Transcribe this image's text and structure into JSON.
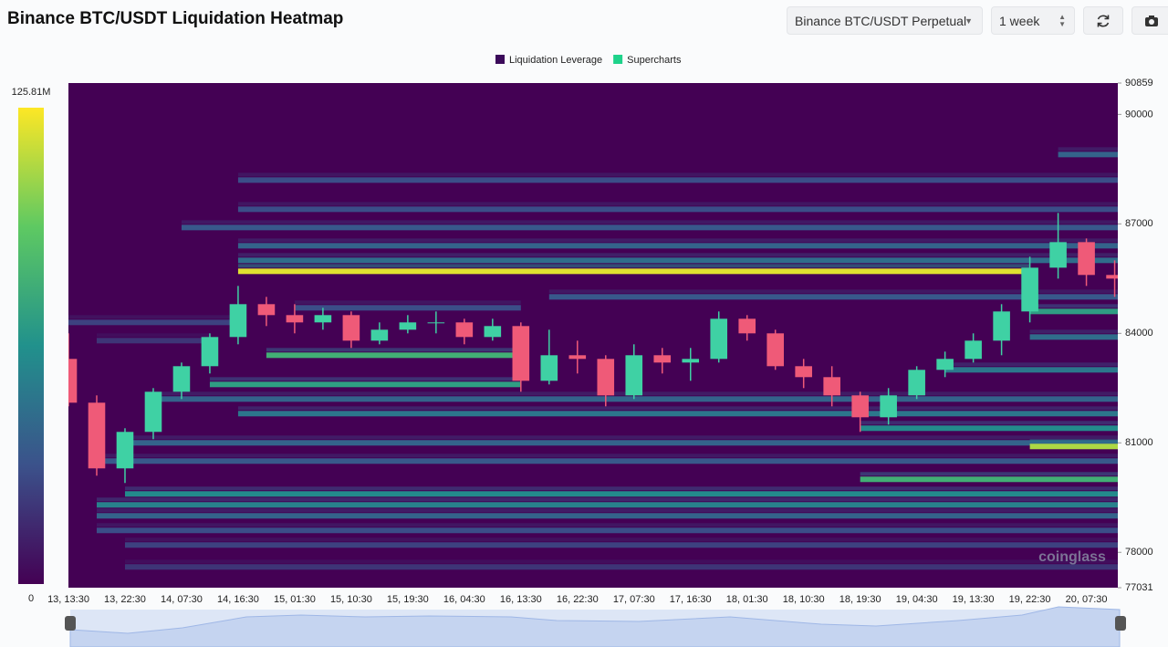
{
  "chart_data": {
    "type": "heatmap",
    "title": "Binance BTC/USDT Liquidation Heatmap",
    "controls": {
      "exchange": "Binance BTC/USDT Perpetual",
      "range": "1 week"
    },
    "legend": [
      {
        "name": "Liquidation Leverage",
        "color": "#3b0a5a"
      },
      {
        "name": "Supercharts",
        "color": "#1ed28a"
      }
    ],
    "watermark": "coinglass",
    "colorbar": {
      "lim": [
        0,
        125.81
      ],
      "ticks": [
        {
          "value": 125.81,
          "label": "125.81M"
        },
        0
      ],
      "colors": [
        "#440154",
        "#3b528b",
        "#21918c",
        "#5ec962",
        "#fde725"
      ]
    },
    "ylim": [
      77031,
      90859
    ],
    "yticks": [
      90859,
      90000,
      87000,
      84000,
      81000,
      78000,
      77031
    ],
    "xlim": [
      "13, 13:30",
      "20, 12:30"
    ],
    "xticks": [
      "13, 13:30",
      "13, 22:30",
      "14, 07:30",
      "14, 16:30",
      "15, 01:30",
      "15, 10:30",
      "15, 19:30",
      "16, 04:30",
      "16, 13:30",
      "16, 22:30",
      "17, 07:30",
      "17, 16:30",
      "18, 01:30",
      "18, 10:30",
      "18, 19:30",
      "19, 04:30",
      "19, 13:30",
      "19, 22:30",
      "20, 07:30"
    ],
    "bands": [
      {
        "price": 88900,
        "from": "20, 03:00",
        "value": 40
      },
      {
        "price": 88200,
        "from": "14, 16:30",
        "value": 30
      },
      {
        "price": 87400,
        "from": "14, 16:30",
        "value": 30
      },
      {
        "price": 86900,
        "from": "14, 07:30",
        "value": 35
      },
      {
        "price": 86400,
        "from": "14, 16:30",
        "value": 40
      },
      {
        "price": 86000,
        "from": "14, 16:30",
        "value": 45
      },
      {
        "price": 85700,
        "from": "14, 16:30",
        "to": "19, 22:30",
        "value": 120
      },
      {
        "price": 85000,
        "from": "16, 18:00",
        "value": 35
      },
      {
        "price": 84700,
        "from": "15, 01:30",
        "to": "16, 13:30",
        "value": 30
      },
      {
        "price": 84600,
        "from": "19, 22:30",
        "value": 70
      },
      {
        "price": 84300,
        "from": "13, 13:30",
        "to": "14, 16:30",
        "value": 25
      },
      {
        "price": 83900,
        "from": "19, 22:30",
        "value": 45
      },
      {
        "price": 83800,
        "from": "13, 18:00",
        "to": "14, 12:00",
        "value": 20
      },
      {
        "price": 83400,
        "from": "14, 21:00",
        "to": "16, 13:30",
        "value": 80
      },
      {
        "price": 83000,
        "from": "19, 09:00",
        "value": 50
      },
      {
        "price": 82600,
        "from": "14, 12:00",
        "to": "16, 13:30",
        "value": 70
      },
      {
        "price": 82200,
        "from": "14, 03:00",
        "value": 40
      },
      {
        "price": 81800,
        "from": "14, 16:30",
        "value": 50
      },
      {
        "price": 81400,
        "from": "18, 19:30",
        "value": 60
      },
      {
        "price": 81000,
        "from": "13, 22:30",
        "value": 40
      },
      {
        "price": 80900,
        "from": "19, 22:30",
        "value": 110
      },
      {
        "price": 80500,
        "from": "13, 18:00",
        "value": 35
      },
      {
        "price": 80000,
        "from": "18, 19:30",
        "value": 80
      },
      {
        "price": 79600,
        "from": "13, 22:30",
        "value": 60
      },
      {
        "price": 79300,
        "from": "13, 18:00",
        "value": 55
      },
      {
        "price": 79000,
        "from": "13, 18:00",
        "value": 40
      },
      {
        "price": 78600,
        "from": "13, 18:00",
        "value": 30
      },
      {
        "price": 78200,
        "from": "13, 22:30",
        "value": 25
      },
      {
        "price": 77600,
        "from": "13, 22:30",
        "value": 20
      }
    ],
    "candles": {
      "up_color": "#3fd1a4",
      "down_color": "#ef5a78",
      "x": [
        "13, 13:30",
        "13, 18:00",
        "13, 22:30",
        "14, 03:00",
        "14, 07:30",
        "14, 12:00",
        "14, 16:30",
        "14, 21:00",
        "15, 01:30",
        "15, 06:00",
        "15, 10:30",
        "15, 15:00",
        "15, 19:30",
        "16, 00:00",
        "16, 04:30",
        "16, 09:00",
        "16, 13:30",
        "16, 18:00",
        "16, 22:30",
        "17, 03:00",
        "17, 07:30",
        "17, 12:00",
        "17, 16:30",
        "17, 21:00",
        "18, 01:30",
        "18, 06:00",
        "18, 10:30",
        "18, 15:00",
        "18, 19:30",
        "19, 00:00",
        "19, 04:30",
        "19, 09:00",
        "19, 13:30",
        "19, 18:00",
        "19, 22:30",
        "20, 03:00",
        "20, 07:30",
        "20, 12:00"
      ],
      "open": [
        83300,
        82100,
        80300,
        81300,
        82400,
        83100,
        83900,
        84800,
        84500,
        84300,
        84500,
        83800,
        84100,
        84300,
        84300,
        83900,
        84200,
        82700,
        83400,
        83300,
        82300,
        83400,
        83200,
        83300,
        84400,
        84000,
        83100,
        82800,
        82300,
        81700,
        82300,
        83000,
        83300,
        83800,
        84600,
        85800,
        86500,
        85600
      ],
      "high": [
        84000,
        82300,
        81400,
        82500,
        83200,
        84000,
        85300,
        85000,
        84800,
        84700,
        84600,
        84300,
        84500,
        84600,
        84400,
        84400,
        84300,
        84100,
        83800,
        83400,
        83700,
        83600,
        83600,
        84600,
        84500,
        84100,
        83300,
        83100,
        82400,
        82500,
        83100,
        83500,
        84000,
        84800,
        86100,
        87300,
        86600,
        86000
      ],
      "low": [
        82000,
        80100,
        79900,
        81100,
        82200,
        82900,
        83700,
        84200,
        84000,
        84100,
        83600,
        83700,
        84000,
        84000,
        83700,
        83800,
        82400,
        82600,
        82900,
        82000,
        82200,
        82900,
        82700,
        83200,
        83800,
        83000,
        82500,
        82000,
        81300,
        81500,
        82200,
        82800,
        83200,
        83400,
        84300,
        85500,
        85300,
        85000
      ],
      "close": [
        82100,
        80300,
        81300,
        82400,
        83100,
        83900,
        84800,
        84500,
        84300,
        84500,
        83800,
        84100,
        84300,
        84300,
        83900,
        84200,
        82700,
        83400,
        83300,
        82300,
        83400,
        83200,
        83300,
        84400,
        84000,
        83100,
        82800,
        82300,
        81700,
        82300,
        83000,
        83300,
        83800,
        84600,
        85800,
        86500,
        85600,
        85500
      ]
    }
  }
}
